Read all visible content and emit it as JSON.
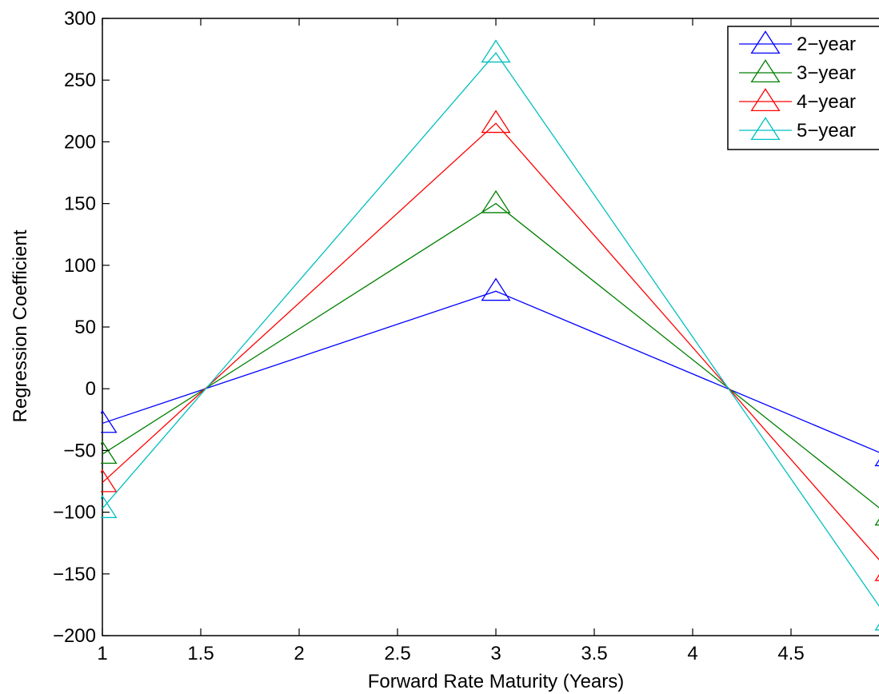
{
  "chart_data": {
    "type": "line",
    "title": "",
    "xlabel": "Forward Rate Maturity (Years)",
    "ylabel": "Regression Coefficient",
    "xlim": [
      1,
      5
    ],
    "ylim": [
      -200,
      300
    ],
    "xticks": [
      1,
      1.5,
      2,
      2.5,
      3,
      3.5,
      4,
      4.5
    ],
    "xtick_labels": [
      "1",
      "1.5",
      "2",
      "2.5",
      "3",
      "3.5",
      "4",
      "4.5"
    ],
    "yticks": [
      -200,
      -150,
      -100,
      -50,
      0,
      50,
      100,
      150,
      200,
      250,
      300
    ],
    "ytick_labels": [
      "−200",
      "−150",
      "−100",
      "−50",
      "0",
      "50",
      "100",
      "150",
      "200",
      "250",
      "300"
    ],
    "grid": false,
    "marker": "triangle",
    "legend_position": "top-right",
    "series": [
      {
        "name": "2−year",
        "color": "#0000ff",
        "x": [
          1,
          3,
          5
        ],
        "y": [
          -28,
          79,
          -55
        ]
      },
      {
        "name": "3−year",
        "color": "#008000",
        "x": [
          1,
          3,
          5
        ],
        "y": [
          -53,
          150,
          -103
        ]
      },
      {
        "name": "4−year",
        "color": "#ff0000",
        "x": [
          1,
          3,
          5
        ],
        "y": [
          -76,
          215,
          -148
        ]
      },
      {
        "name": "5−year",
        "color": "#00bfbf",
        "x": [
          1,
          3,
          5
        ],
        "y": [
          -97,
          272,
          -188
        ]
      }
    ]
  }
}
